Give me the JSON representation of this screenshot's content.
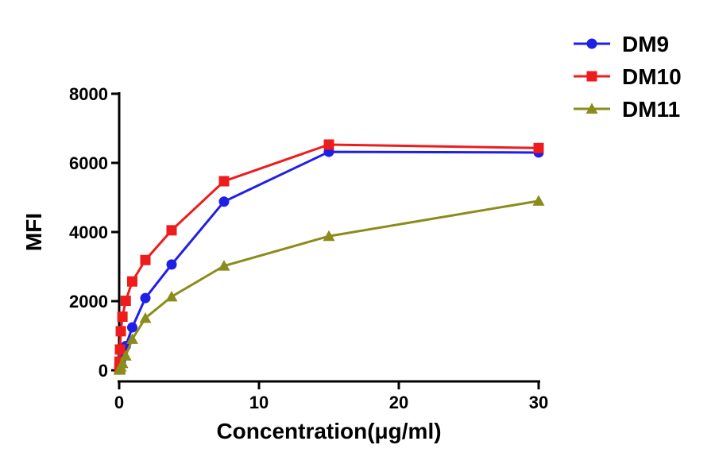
{
  "chart_data": {
    "type": "line",
    "x_label": "Concentration(μg/ml)",
    "y_label": "MFI",
    "x": [
      0.015,
      0.029,
      0.059,
      0.117,
      0.234,
      0.469,
      0.9375,
      1.875,
      3.75,
      7.5,
      15,
      30
    ],
    "series": [
      {
        "name": "DM9",
        "color": "#1f1fe6",
        "marker": "circle",
        "values": [
          20,
          50,
          100,
          200,
          380,
          700,
          1240,
          2090,
          3060,
          4880,
          6320,
          6300
        ]
      },
      {
        "name": "DM10",
        "color": "#ee1c1c",
        "marker": "square",
        "values": [
          80,
          250,
          600,
          1130,
          1550,
          2010,
          2570,
          3190,
          4050,
          5470,
          6530,
          6430
        ]
      },
      {
        "name": "DM11",
        "color": "#8c8c1c",
        "marker": "triangle",
        "values": [
          10,
          20,
          50,
          100,
          200,
          420,
          900,
          1510,
          2130,
          3020,
          3880,
          4900
        ]
      }
    ],
    "xlim": [
      0,
      30
    ],
    "xticks": [
      0,
      10,
      20,
      30
    ],
    "ylim": [
      0,
      8000
    ],
    "yticks": [
      0,
      2000,
      4000,
      6000,
      8000
    ],
    "legend": "upper right"
  }
}
